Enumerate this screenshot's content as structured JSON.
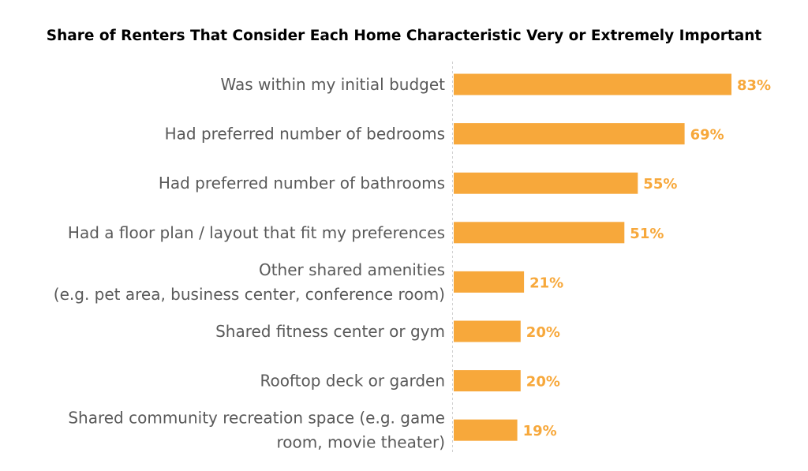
{
  "chart_data": {
    "type": "bar",
    "orientation": "horizontal",
    "title": "Share of Renters That Consider Each Home Characteristic Very or Extremely Important",
    "categories": [
      [
        "Was within my initial budget"
      ],
      [
        "Had preferred number of bedrooms"
      ],
      [
        "Had preferred number of bathrooms"
      ],
      [
        "Had a floor plan / layout that fit my preferences"
      ],
      [
        "Other shared amenities",
        "(e.g. pet area, business center, conference room)"
      ],
      [
        "Shared fitness center or gym"
      ],
      [
        "Rooftop deck or garden"
      ],
      [
        "Shared community recreation space (e.g. game",
        "room, movie theater)"
      ]
    ],
    "values": [
      83,
      69,
      55,
      51,
      21,
      20,
      20,
      19
    ],
    "value_labels": [
      "83%",
      "69%",
      "55%",
      "51%",
      "21%",
      "20%",
      "20%",
      "19%"
    ],
    "unit": "%",
    "xlim": [
      0,
      83
    ],
    "grid": false,
    "legend": "none",
    "bar_color": "#F7A83B"
  }
}
